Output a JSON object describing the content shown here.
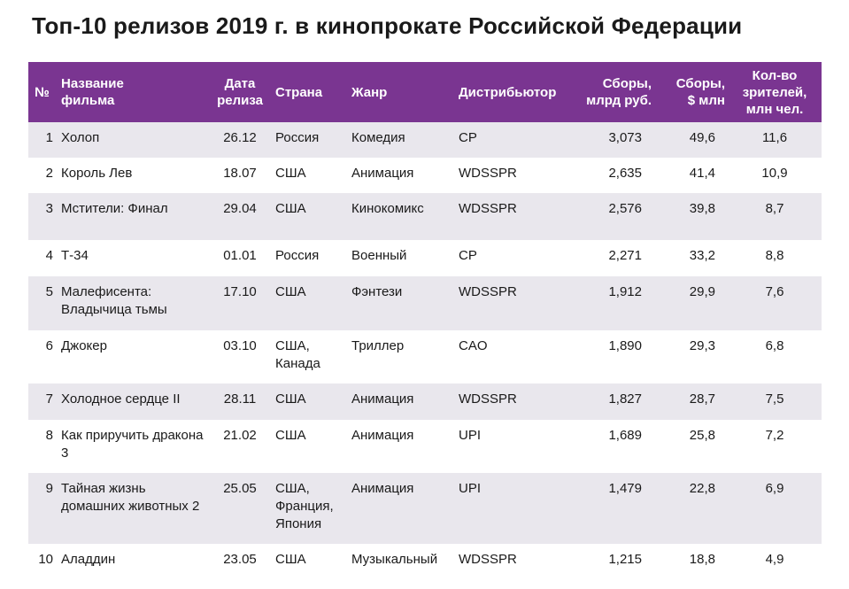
{
  "title": "Топ-10 релизов 2019 г. в кинопрокате Российской Федерации",
  "colors": {
    "header_bg": "#7a3591",
    "stripe": "#e9e7ed"
  },
  "columns": {
    "num": "№",
    "name": "Название фильма",
    "date": "Дата релиза",
    "country": "Страна",
    "genre": "Жанр",
    "distributor": "Дистрибьютор",
    "gross_rub": "Сборы, млрд руб.",
    "gross_usd": "Сборы, $ млн",
    "viewers": "Кол-во зрителей, млн чел."
  },
  "rows": [
    {
      "num": "1",
      "name": "Холоп",
      "date": "26.12",
      "country": "Россия",
      "genre": "Комедия",
      "distributor": "СР",
      "gross_rub": "3,073",
      "gross_usd": "49,6",
      "viewers": "11,6"
    },
    {
      "num": "2",
      "name": "Король Лев",
      "date": "18.07",
      "country": "США",
      "genre": "Анимация",
      "distributor": "WDSSPR",
      "gross_rub": "2,635",
      "gross_usd": "41,4",
      "viewers": "10,9"
    },
    {
      "num": "3",
      "name": "Мстители: Финал",
      "date": "29.04",
      "country": "США",
      "genre": "Кинокомикс",
      "distributor": "WDSSPR",
      "gross_rub": "2,576",
      "gross_usd": "39,8",
      "viewers": "8,7"
    },
    {
      "num": "4",
      "name": "Т-34",
      "date": "01.01",
      "country": "Россия",
      "genre": "Военный",
      "distributor": "СР",
      "gross_rub": "2,271",
      "gross_usd": "33,2",
      "viewers": "8,8"
    },
    {
      "num": "5",
      "name": "Малефисента: Владычица тьмы",
      "date": "17.10",
      "country": "США",
      "genre": "Фэнтези",
      "distributor": "WDSSPR",
      "gross_rub": "1,912",
      "gross_usd": "29,9",
      "viewers": "7,6"
    },
    {
      "num": "6",
      "name": "Джокер",
      "date": "03.10",
      "country": "США, Канада",
      "genre": "Триллер",
      "distributor": "CAO",
      "gross_rub": "1,890",
      "gross_usd": "29,3",
      "viewers": "6,8"
    },
    {
      "num": "7",
      "name": "Холодное сердце II",
      "date": "28.11",
      "country": "США",
      "genre": "Анимация",
      "distributor": "WDSSPR",
      "gross_rub": "1,827",
      "gross_usd": "28,7",
      "viewers": "7,5"
    },
    {
      "num": "8",
      "name": "Как приручить дракона 3",
      "date": "21.02",
      "country": "США",
      "genre": "Анимация",
      "distributor": "UPI",
      "gross_rub": "1,689",
      "gross_usd": "25,8",
      "viewers": "7,2"
    },
    {
      "num": "9",
      "name": "Тайная жизнь домашних животных 2",
      "date": "25.05",
      "country": "США, Франция, Япония",
      "genre": "Анимация",
      "distributor": "UPI",
      "gross_rub": "1,479",
      "gross_usd": "22,8",
      "viewers": "6,9"
    },
    {
      "num": "10",
      "name": "Аладдин",
      "date": "23.05",
      "country": "США",
      "genre": "Музыкальный",
      "distributor": "WDSSPR",
      "gross_rub": "1,215",
      "gross_usd": "18,8",
      "viewers": "4,9"
    }
  ]
}
